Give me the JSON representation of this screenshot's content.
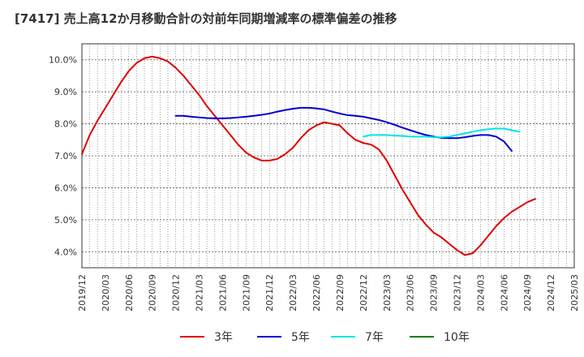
{
  "chart_data": {
    "type": "line",
    "title": "[7417]  売上高12か月移動合計の対前年同期増減率の標準偏差の推移",
    "xlabel": "",
    "ylabel": "",
    "ylim": [
      3.5,
      10.5
    ],
    "y_ticks": [
      "4.0%",
      "5.0%",
      "6.0%",
      "7.0%",
      "8.0%",
      "9.0%",
      "10.0%"
    ],
    "y_tick_values": [
      4,
      5,
      6,
      7,
      8,
      9,
      10
    ],
    "x_ticks": [
      "2019/12",
      "2020/03",
      "2020/06",
      "2020/09",
      "2020/12",
      "2021/03",
      "2021/06",
      "2021/09",
      "2021/12",
      "2022/03",
      "2022/06",
      "2022/09",
      "2022/12",
      "2023/03",
      "2023/06",
      "2023/09",
      "2023/12",
      "2024/03",
      "2024/06",
      "2024/09",
      "2024/12",
      "2025/03"
    ],
    "grid": true,
    "legend_position": "bottom",
    "series": [
      {
        "name": "3年",
        "color": "#e00000",
        "start": "2019/12",
        "values": [
          7.05,
          7.65,
          8.1,
          8.5,
          8.9,
          9.3,
          9.65,
          9.9,
          10.05,
          10.1,
          10.05,
          9.95,
          9.75,
          9.5,
          9.2,
          8.9,
          8.55,
          8.25,
          7.95,
          7.65,
          7.35,
          7.1,
          6.95,
          6.85,
          6.85,
          6.9,
          7.05,
          7.25,
          7.55,
          7.8,
          7.95,
          8.05,
          8.0,
          7.95,
          7.7,
          7.5,
          7.4,
          7.35,
          7.2,
          6.85,
          6.4,
          5.95,
          5.55,
          5.15,
          4.85,
          4.6,
          4.45,
          4.25,
          4.05,
          3.9,
          3.95,
          4.2,
          4.5,
          4.8,
          5.05,
          5.25,
          5.4,
          5.55,
          5.65
        ]
      },
      {
        "name": "5年",
        "color": "#0000cc",
        "start": "2020/12",
        "values": [
          8.25,
          8.25,
          8.22,
          8.2,
          8.18,
          8.17,
          8.17,
          8.18,
          8.2,
          8.22,
          8.25,
          8.28,
          8.32,
          8.38,
          8.43,
          8.47,
          8.5,
          8.5,
          8.48,
          8.45,
          8.38,
          8.32,
          8.27,
          8.25,
          8.22,
          8.17,
          8.12,
          8.05,
          7.97,
          7.88,
          7.8,
          7.72,
          7.65,
          7.6,
          7.56,
          7.55,
          7.55,
          7.58,
          7.62,
          7.65,
          7.65,
          7.6,
          7.45,
          7.15
        ]
      },
      {
        "name": "7年",
        "color": "#00e5e5",
        "start": "2022/12",
        "values": [
          7.6,
          7.65,
          7.65,
          7.65,
          7.63,
          7.62,
          7.6,
          7.6,
          7.6,
          7.58,
          7.58,
          7.6,
          7.65,
          7.7,
          7.75,
          7.8,
          7.83,
          7.85,
          7.85,
          7.8,
          7.75
        ]
      },
      {
        "name": "10年",
        "color": "#008000",
        "start": "2025/03",
        "values": []
      }
    ]
  }
}
